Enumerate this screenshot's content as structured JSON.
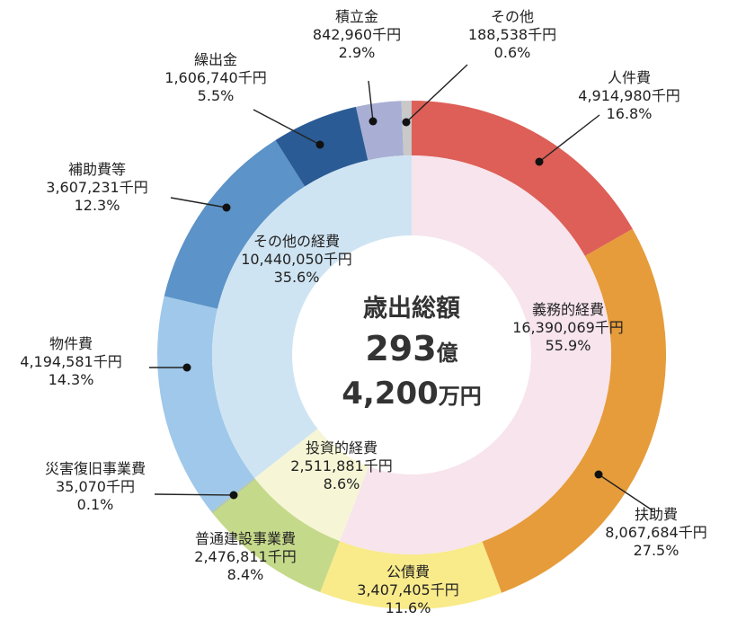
{
  "chart_data": {
    "type": "pie",
    "variant": "nested-donut",
    "center": {
      "title": "歳出総額",
      "amount_oku": "293",
      "unit_oku": "億",
      "amount_man": "4,200",
      "unit_man": "万円"
    },
    "inner": [
      {
        "label": "義務的経費",
        "amount": "16,390,069千円",
        "value": 16390069,
        "percent": "55.9%",
        "color": "#f7e4ec"
      },
      {
        "label": "投資的経費",
        "amount": "2,511,881千円",
        "value": 2511881,
        "percent": "8.6%",
        "color": "#f6f6d6"
      },
      {
        "label": "その他の経費",
        "amount": "10,440,050千円",
        "value": 10440050,
        "percent": "35.6%",
        "color": "#cfe4f2"
      }
    ],
    "outer": [
      {
        "label": "人件費",
        "amount": "4,914,980千円",
        "value": 4914980,
        "percent": "16.8%",
        "color": "#dd5f57"
      },
      {
        "label": "扶助費",
        "amount": "8,067,684千円",
        "value": 8067684,
        "percent": "27.5%",
        "color": "#e69c3a"
      },
      {
        "label": "公債費",
        "amount": "3,407,405千円",
        "value": 3407405,
        "percent": "11.6%",
        "color": "#f9ea8a"
      },
      {
        "label": "普通建設事業費",
        "amount": "2,476,811千円",
        "value": 2476811,
        "percent": "8.4%",
        "color": "#c5d98a"
      },
      {
        "label": "災害復旧事業費",
        "amount": "35,070千円",
        "value": 35070,
        "percent": "0.1%",
        "color": "#b4c7a0"
      },
      {
        "label": "物件費",
        "amount": "4,194,581千円",
        "value": 4194581,
        "percent": "14.3%",
        "color": "#9fc8ea"
      },
      {
        "label": "補助費等",
        "amount": "3,607,231千円",
        "value": 3607231,
        "percent": "12.3%",
        "color": "#5c93c8"
      },
      {
        "label": "繰出金",
        "amount": "1,606,740千円",
        "value": 1606740,
        "percent": "5.5%",
        "color": "#2a5b94"
      },
      {
        "label": "積立金",
        "amount": "842,960千円",
        "value": 842960,
        "percent": "2.9%",
        "color": "#a9aed4"
      },
      {
        "label": "その他",
        "amount": "188,538千円",
        "value": 188538,
        "percent": "0.6%",
        "color": "#c9c9c9"
      }
    ]
  }
}
